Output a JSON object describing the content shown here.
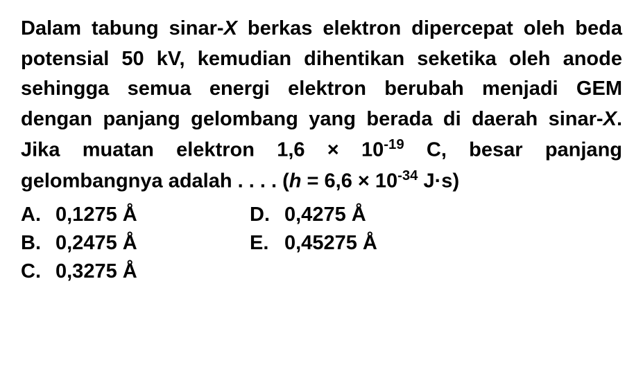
{
  "question": {
    "text_parts": {
      "p1": "Dalam tabung sinar-",
      "x1": "X",
      "p2": " berkas elektron dipercepat oleh beda potensial 50 kV, kemudian dihentikan seketika oleh anode sehingga semua energi elektron berubah menjadi GEM dengan panjang gelombang yang berada di daerah sinar-",
      "x2": "X",
      "p3": ". Jika muatan elektron 1,6 × 10",
      "exp1": "-19",
      "p4": " C, besar panjang gelombangnya adalah . . . . (",
      "h": "h",
      "p5": " = 6,6 × 10",
      "exp2": "-34",
      "p6": " J·s)"
    },
    "styling": {
      "font_size_pt": 29,
      "font_weight": "bold",
      "text_color": "#000000",
      "background_color": "#ffffff",
      "line_height": 1.5
    }
  },
  "options": {
    "a": {
      "letter": "A.",
      "value": "0,1275 Å"
    },
    "b": {
      "letter": "B.",
      "value": "0,2475 Å"
    },
    "c": {
      "letter": "C.",
      "value": "0,3275 Å"
    },
    "d": {
      "letter": "D.",
      "value": "0,4275 Å"
    },
    "e": {
      "letter": "E.",
      "value": "0,45275 Å"
    }
  }
}
